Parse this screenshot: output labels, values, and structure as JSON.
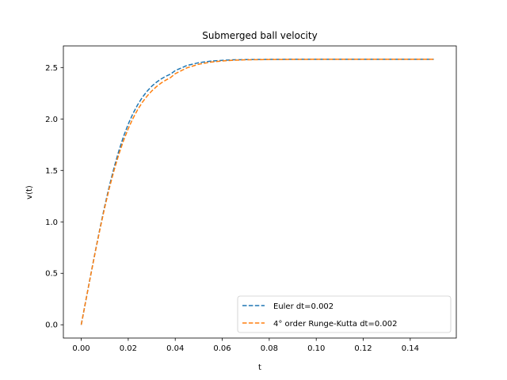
{
  "chart_data": {
    "type": "line",
    "title": "Submerged ball velocity",
    "xlabel": "t",
    "ylabel": "v(t)",
    "xlim": [
      -0.0076,
      0.1596
    ],
    "ylim": [
      -0.129,
      2.71
    ],
    "xticks": [
      0.0,
      0.02,
      0.04,
      0.06,
      0.08,
      0.1,
      0.12,
      0.14
    ],
    "xtick_labels": [
      "0.00",
      "0.02",
      "0.04",
      "0.06",
      "0.08",
      "0.10",
      "0.12",
      "0.14"
    ],
    "yticks": [
      0.0,
      0.5,
      1.0,
      1.5,
      2.0,
      2.5
    ],
    "ytick_labels": [
      "0.0",
      "0.5",
      "1.0",
      "1.5",
      "2.0",
      "2.5"
    ],
    "grid": false,
    "legend_position": "lower-right",
    "series": [
      {
        "name": "Euler dt=0.002",
        "color": "#1f77b4",
        "style": "dashed",
        "x": [
          0.0,
          0.002,
          0.004,
          0.006,
          0.008,
          0.01,
          0.012,
          0.014,
          0.016,
          0.018,
          0.02,
          0.022,
          0.024,
          0.026,
          0.028,
          0.03,
          0.032,
          0.034,
          0.036,
          0.038,
          0.04,
          0.045,
          0.05,
          0.055,
          0.06,
          0.065,
          0.07,
          0.08,
          0.09,
          0.1,
          0.11,
          0.12,
          0.13,
          0.14,
          0.15
        ],
        "y": [
          0.0,
          0.241,
          0.48,
          0.715,
          0.94,
          1.154,
          1.352,
          1.53,
          1.69,
          1.83,
          1.95,
          2.052,
          2.138,
          2.21,
          2.269,
          2.318,
          2.357,
          2.389,
          2.415,
          2.436,
          2.47,
          2.52,
          2.547,
          2.562,
          2.57,
          2.575,
          2.577,
          2.579,
          2.58,
          2.58,
          2.58,
          2.58,
          2.58,
          2.58,
          2.58
        ]
      },
      {
        "name": "4° order Runge-Kutta dt=0.002",
        "color": "#ff7f0e",
        "style": "dashed",
        "x": [
          0.0,
          0.002,
          0.004,
          0.006,
          0.008,
          0.01,
          0.012,
          0.014,
          0.016,
          0.018,
          0.02,
          0.022,
          0.024,
          0.026,
          0.028,
          0.03,
          0.032,
          0.034,
          0.036,
          0.038,
          0.04,
          0.045,
          0.05,
          0.055,
          0.06,
          0.065,
          0.07,
          0.08,
          0.09,
          0.1,
          0.11,
          0.12,
          0.13,
          0.14,
          0.15
        ],
        "y": [
          0.0,
          0.24,
          0.478,
          0.71,
          0.932,
          1.14,
          1.332,
          1.504,
          1.657,
          1.79,
          1.906,
          2.005,
          2.09,
          2.162,
          2.222,
          2.272,
          2.314,
          2.349,
          2.378,
          2.402,
          2.44,
          2.497,
          2.532,
          2.552,
          2.564,
          2.571,
          2.575,
          2.578,
          2.579,
          2.58,
          2.58,
          2.58,
          2.58,
          2.58,
          2.58
        ]
      }
    ]
  }
}
